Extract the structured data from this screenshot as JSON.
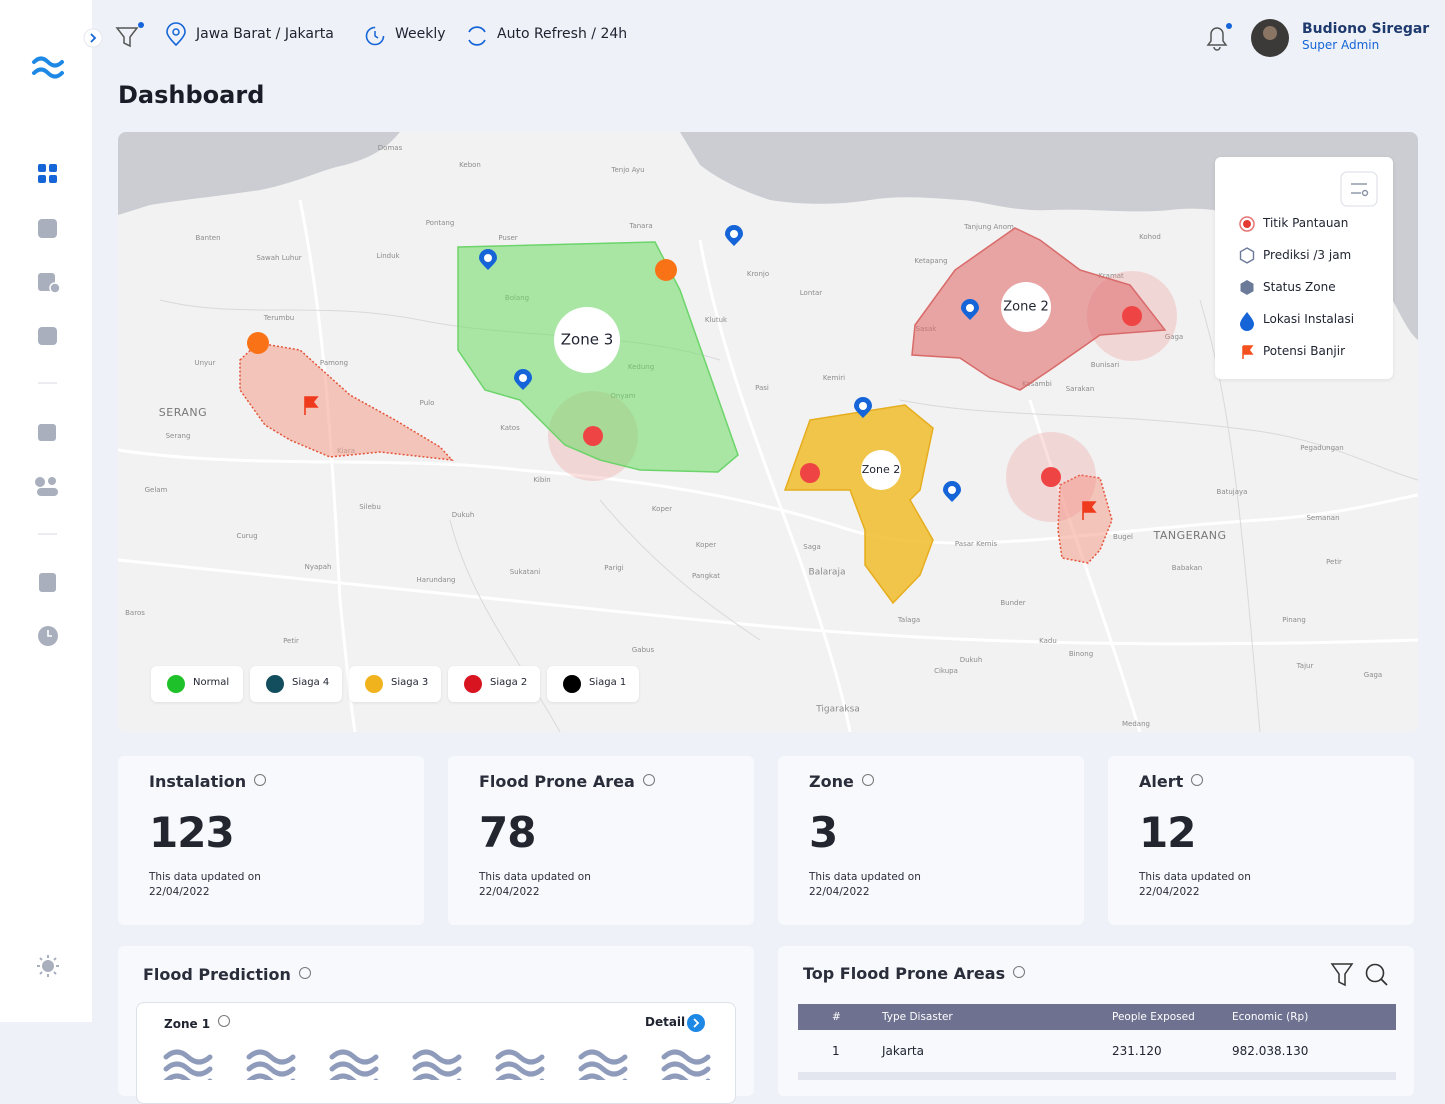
{
  "header": {
    "location": "Jawa Barat / Jakarta",
    "period": "Weekly",
    "refresh": "Auto Refresh / 24h",
    "user_name": "Budiono Siregar",
    "user_role": "Super Admin"
  },
  "page_title": "Dashboard",
  "map": {
    "places": [
      "Domas",
      "Kebon",
      "Tenjo Ayu",
      "Banten",
      "Pontang",
      "Tanara",
      "Puser",
      "Sawah Luhur",
      "Linduk",
      "Kronjo",
      "Lontar",
      "Tanjung Anom",
      "Kohod",
      "Ketapang",
      "Bolang",
      "Kramat",
      "Terumbu",
      "Klutuk",
      "Sasak",
      "Gaga",
      "Unyur",
      "Pamong",
      "Kedung",
      "Kemiri",
      "Pasi",
      "Bunisari",
      "Kosambi",
      "Sarakan",
      "Pulo",
      "Onyam",
      "SERANG",
      "Serang",
      "Katos",
      "Kiara",
      "Kibin",
      "Pegadungan",
      "Batujaya",
      "Gelam",
      "Silebu",
      "Dukuh",
      "Koper",
      "Semanan",
      "Curug",
      "TANGERANG",
      "Saga",
      "Bugel",
      "Pasar Kemis",
      "Koper",
      "Nyapah",
      "Sukatani",
      "Parigi",
      "Pangkat",
      "Balaraja",
      "Babakan",
      "Harundang",
      "Petir",
      "Bunder",
      "Baros",
      "Talaga",
      "Pinang",
      "Petir",
      "Kadu",
      "Gabus",
      "Binong",
      "Tajur",
      "Dukuh",
      "Cikupa",
      "Gaga",
      "Tigaraksa",
      "Medang"
    ],
    "zones": [
      "Zone 3",
      "Zone 2",
      "Zone 2"
    ],
    "legend": [
      "Titik Pantauan",
      "Prediksi /3 jam",
      "Status Zone",
      "Lokasi Instalasi",
      "Potensi Banjir"
    ],
    "statuses": [
      "Normal",
      "Siaga 4",
      "Siaga 3",
      "Siaga 2",
      "Siaga 1"
    ]
  },
  "stats": [
    {
      "title": "Instalation",
      "value": 123,
      "note": "This data updated on",
      "date": "22/04/2022"
    },
    {
      "title": "Flood Prone Area",
      "value": 78,
      "note": "This data updated on",
      "date": "22/04/2022"
    },
    {
      "title": "Zone",
      "value": 3,
      "note": "This data updated on",
      "date": "22/04/2022"
    },
    {
      "title": "Alert",
      "value": 12,
      "note": "This data updated on",
      "date": "22/04/2022"
    }
  ],
  "flood_prediction": {
    "title": "Flood Prediction",
    "zone": "Zone 1",
    "detail": "Detail"
  },
  "top_areas": {
    "title": "Top Flood Prone Areas",
    "table": {
      "headers": [
        "#",
        "Type Disaster",
        "People Exposed",
        "Economic (Rp)"
      ],
      "rows": [
        [
          "1",
          "Jakarta",
          "231.120",
          "982.038.130"
        ]
      ]
    }
  }
}
